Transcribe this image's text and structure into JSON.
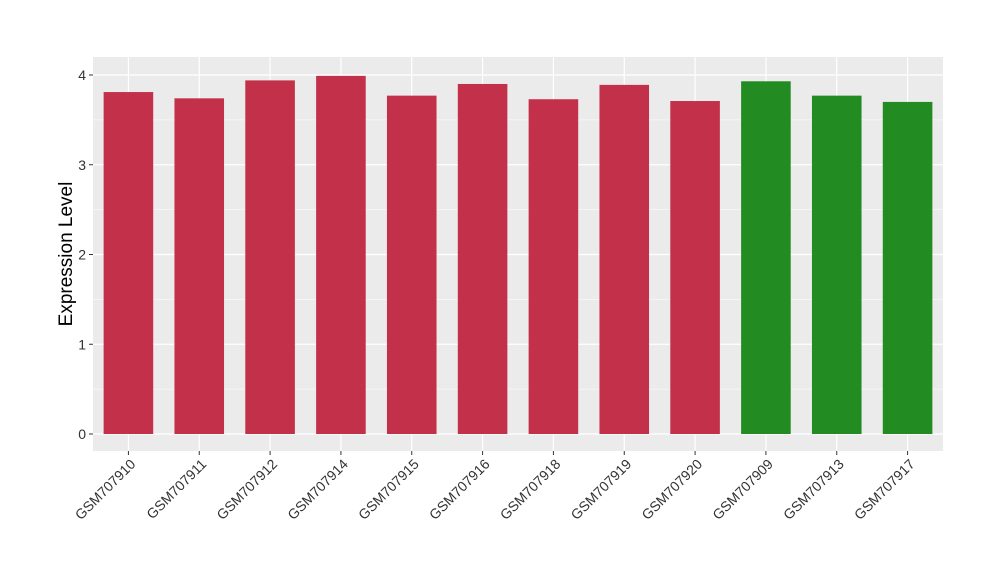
{
  "chart_data": {
    "type": "bar",
    "title": "",
    "xlabel": "",
    "ylabel": "Expression Level",
    "ylim": [
      -0.19,
      4.2
    ],
    "yticks": [
      0,
      1,
      2,
      3,
      4
    ],
    "grid": true,
    "categories": [
      "GSM707910",
      "GSM707911",
      "GSM707912",
      "GSM707914",
      "GSM707915",
      "GSM707916",
      "GSM707918",
      "GSM707919",
      "GSM707920",
      "GSM707909",
      "GSM707913",
      "GSM707917"
    ],
    "values": [
      3.81,
      3.74,
      3.94,
      3.99,
      3.77,
      3.9,
      3.73,
      3.89,
      3.71,
      3.93,
      3.77,
      3.7
    ],
    "colors": [
      "#c3304a",
      "#c3304a",
      "#c3304a",
      "#c3304a",
      "#c3304a",
      "#c3304a",
      "#c3304a",
      "#c3304a",
      "#c3304a",
      "#228b22",
      "#228b22",
      "#228b22"
    ],
    "panel_background": "#ebebeb"
  }
}
